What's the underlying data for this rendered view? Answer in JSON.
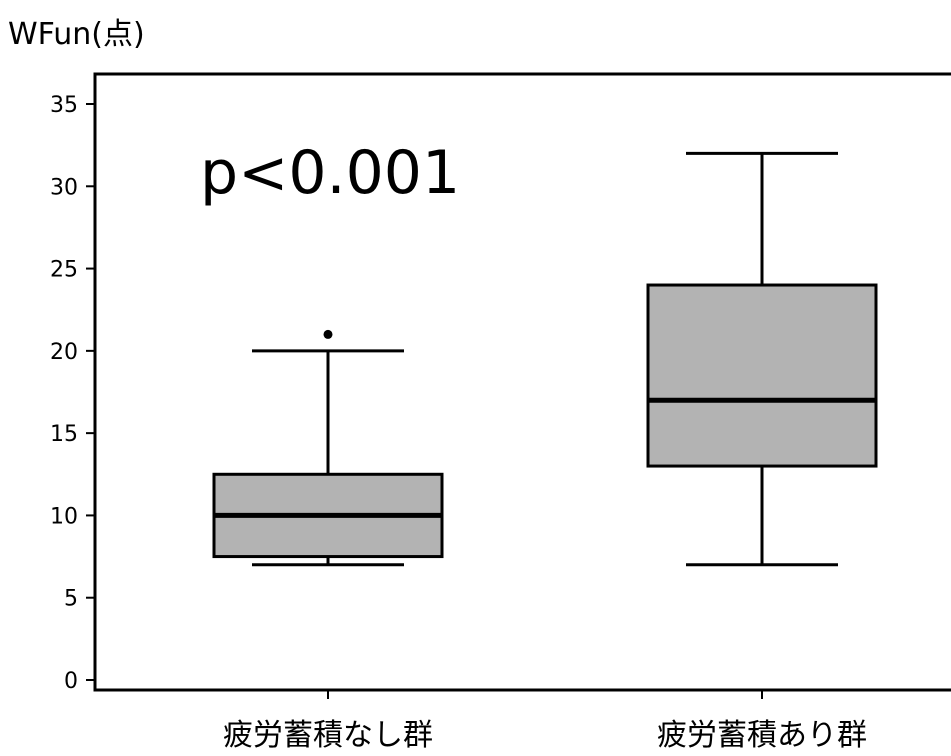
{
  "chart_data": {
    "type": "boxplot",
    "ylabel": "WFun(点)",
    "ylim": [
      0,
      35
    ],
    "yticks": [
      0,
      5,
      10,
      15,
      20,
      25,
      30,
      35
    ],
    "categories": [
      "疲労蓄積なし群",
      "疲労蓄積あり群"
    ],
    "boxes": [
      {
        "category": "疲労蓄積なし群",
        "min": 7,
        "q1": 7.5,
        "median": 10,
        "q3": 12.5,
        "max": 20,
        "outliers": [
          21
        ]
      },
      {
        "category": "疲労蓄積あり群",
        "min": 7,
        "q1": 13,
        "median": 17,
        "q3": 24,
        "max": 32,
        "outliers": []
      }
    ],
    "annotation": "p<0.001",
    "box_fill": "#b3b3b3",
    "line_color": "#000000"
  }
}
